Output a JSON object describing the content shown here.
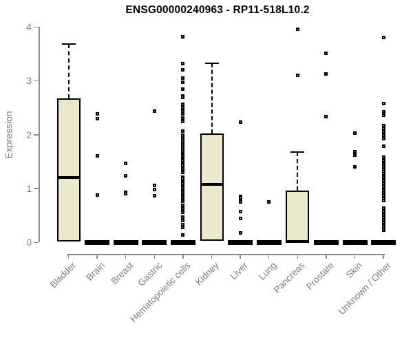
{
  "title_text": "ENSG00000240963 - RP11-518L10.2",
  "colors": {
    "box_fill": "#ece8cd",
    "box_border": "#000000",
    "median": "#000000",
    "whisker": "#000000",
    "zero_bar": "#000000",
    "outlier_border": "#000000",
    "outlier_fill": "#ffffff",
    "axis_line": "#8a8a8a",
    "axis_text": "#7f7f7f",
    "title_text": "#000000"
  },
  "chart_data": {
    "type": "boxplot",
    "title": "ENSG00000240963 - RP11-518L10.2",
    "xlabel": "",
    "ylabel": "Expression",
    "ylim": [
      0,
      4
    ],
    "yticks": [
      0,
      1,
      2,
      3,
      4
    ],
    "grid": false,
    "legend": null,
    "categories": [
      "Bladder",
      "Brain",
      "Breast",
      "Gastric",
      "Hematopoietic cells",
      "Kidney",
      "Liver",
      "Lung",
      "Pancreas",
      "Prostate",
      "Skin",
      "Unknown / Other"
    ],
    "series": [
      {
        "label": "Bladder",
        "box": {
          "q1": 0.01,
          "median": 1.2,
          "q3": 2.67,
          "whisker_high": 3.68,
          "whisker_low": null
        },
        "zero_bar": false,
        "outliers": []
      },
      {
        "label": "Brain",
        "box": null,
        "zero_bar": true,
        "outliers": [
          2.38,
          2.29,
          1.6,
          0.87
        ]
      },
      {
        "label": "Breast",
        "box": null,
        "zero_bar": true,
        "outliers": [
          1.46,
          1.24,
          0.93,
          0.9
        ]
      },
      {
        "label": "Gastric",
        "box": null,
        "zero_bar": true,
        "outliers": [
          2.43,
          1.05,
          0.98,
          0.86
        ]
      },
      {
        "label": "Hematopoietic cells",
        "box": null,
        "zero_bar": true,
        "outliers": [
          3.82,
          3.32,
          3.2,
          3.05,
          2.97,
          2.84,
          2.72,
          2.69,
          2.57,
          2.5,
          2.43,
          2.38,
          2.31,
          2.24,
          2.07,
          1.99,
          1.94,
          1.89,
          1.85,
          1.81,
          1.77,
          1.73,
          1.69,
          1.66,
          1.63,
          1.6,
          1.57,
          1.54,
          1.51,
          1.48,
          1.45,
          1.42,
          1.39,
          1.36,
          1.3,
          1.21,
          1.18,
          1.15,
          1.12,
          1.09,
          1.06,
          1.03,
          1.0,
          0.97,
          0.94,
          0.91,
          0.88,
          0.85,
          0.82,
          0.79,
          0.76,
          0.69,
          0.62,
          0.55,
          0.47,
          0.4,
          0.33,
          0.27,
          0.14
        ]
      },
      {
        "label": "Kidney",
        "box": {
          "q1": 0.03,
          "median": 1.07,
          "q3": 2.02,
          "whisker_high": 3.33,
          "whisker_low": null
        },
        "zero_bar": false,
        "outliers": []
      },
      {
        "label": "Liver",
        "box": null,
        "zero_bar": true,
        "outliers": [
          2.23,
          0.85,
          0.82,
          0.78,
          0.75,
          0.57,
          0.44,
          0.17
        ]
      },
      {
        "label": "Lung",
        "box": null,
        "zero_bar": true,
        "outliers": [
          0.75
        ]
      },
      {
        "label": "Pancreas",
        "box": {
          "q1": 0.0,
          "median": 0.01,
          "q3": 0.96,
          "whisker_high": 1.67,
          "whisker_low": null
        },
        "zero_bar": false,
        "outliers": [
          3.96,
          3.1
        ]
      },
      {
        "label": "Prostate",
        "box": null,
        "zero_bar": true,
        "outliers": [
          3.51,
          3.13,
          2.33
        ]
      },
      {
        "label": "Skin",
        "box": null,
        "zero_bar": true,
        "outliers": [
          2.03,
          1.68,
          1.62,
          1.4
        ]
      },
      {
        "label": "Unknown / Other",
        "box": null,
        "zero_bar": true,
        "outliers": [
          3.8,
          2.58,
          2.42,
          2.36,
          2.17,
          2.11,
          2.05,
          1.99,
          1.93,
          1.78,
          1.58,
          1.51,
          1.45,
          1.4,
          1.35,
          1.31,
          1.27,
          1.21,
          1.15,
          1.09,
          1.03,
          0.97,
          0.91,
          0.86,
          0.81,
          0.78,
          0.63,
          0.57,
          0.51,
          0.45,
          0.42,
          0.36,
          0.3,
          0.26,
          0.23
        ]
      }
    ]
  }
}
